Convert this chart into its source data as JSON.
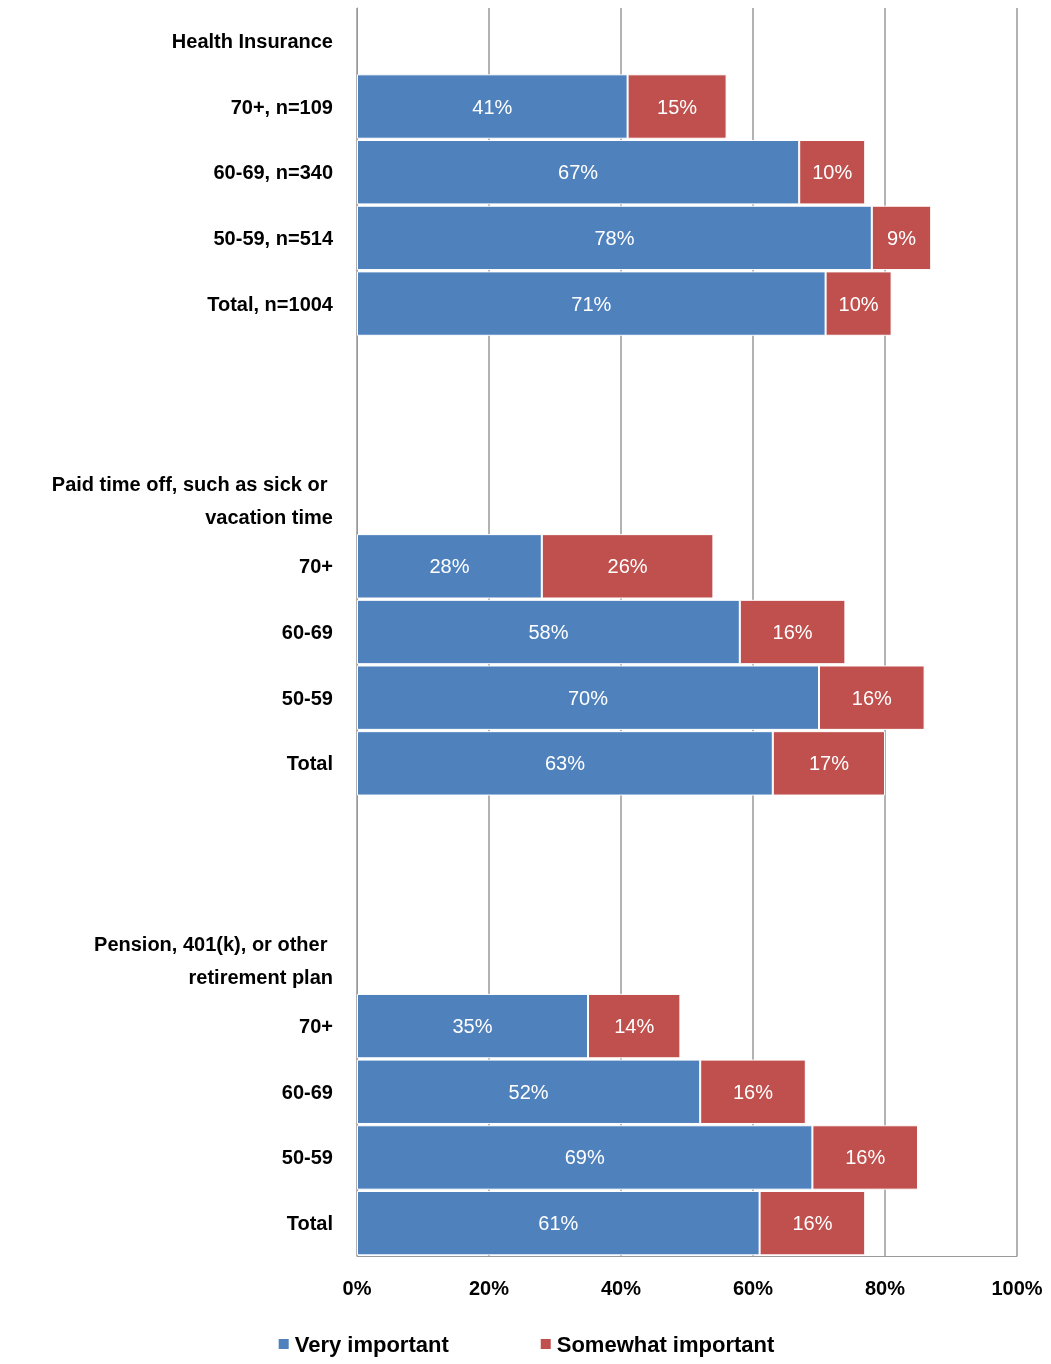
{
  "chart_data": {
    "type": "bar",
    "orientation": "horizontal",
    "stacked": true,
    "categories": [
      "Health Insurance",
      "70+, n=109",
      "60-69, n=340",
      "50-59, n=514",
      "Total, n=1004",
      null,
      null,
      "Paid time off, such as sick or vacation time",
      "70+",
      "60-69",
      "50-59",
      "Total",
      null,
      null,
      "Pension, 401(k), or other retirement plan",
      "70+",
      "60-69",
      "50-59",
      "Total"
    ],
    "series": [
      {
        "name": "Very important",
        "color": "#4f81bd",
        "values": [
          null,
          41,
          67,
          78,
          71,
          null,
          null,
          null,
          28,
          58,
          70,
          63,
          null,
          null,
          null,
          35,
          52,
          69,
          61
        ],
        "value_labels": [
          null,
          "41%",
          "67%",
          "78%",
          "71%",
          null,
          null,
          null,
          "28%",
          "58%",
          "70%",
          "63%",
          null,
          null,
          null,
          "35%",
          "52%",
          "69%",
          "61%"
        ]
      },
      {
        "name": "Somewhat important",
        "color": "#c0504d",
        "values": [
          null,
          15,
          10,
          9,
          10,
          null,
          null,
          null,
          26,
          16,
          16,
          17,
          null,
          null,
          null,
          14,
          16,
          16,
          16
        ],
        "value_labels": [
          null,
          "15%",
          "10%",
          "9%",
          "10%",
          null,
          null,
          null,
          "26%",
          "16%",
          "16%",
          "17%",
          null,
          null,
          null,
          "14%",
          "16%",
          "16%",
          "16%"
        ]
      }
    ],
    "xlim": [
      0,
      100
    ],
    "xticks": [
      {
        "value": 0,
        "label": "0%"
      },
      {
        "value": 20,
        "label": "20%"
      },
      {
        "value": 40,
        "label": "40%"
      },
      {
        "value": 60,
        "label": "60%"
      },
      {
        "value": 80,
        "label": "80%"
      },
      {
        "value": 100,
        "label": "100%"
      }
    ],
    "grid": "x",
    "legend": "bottom"
  }
}
